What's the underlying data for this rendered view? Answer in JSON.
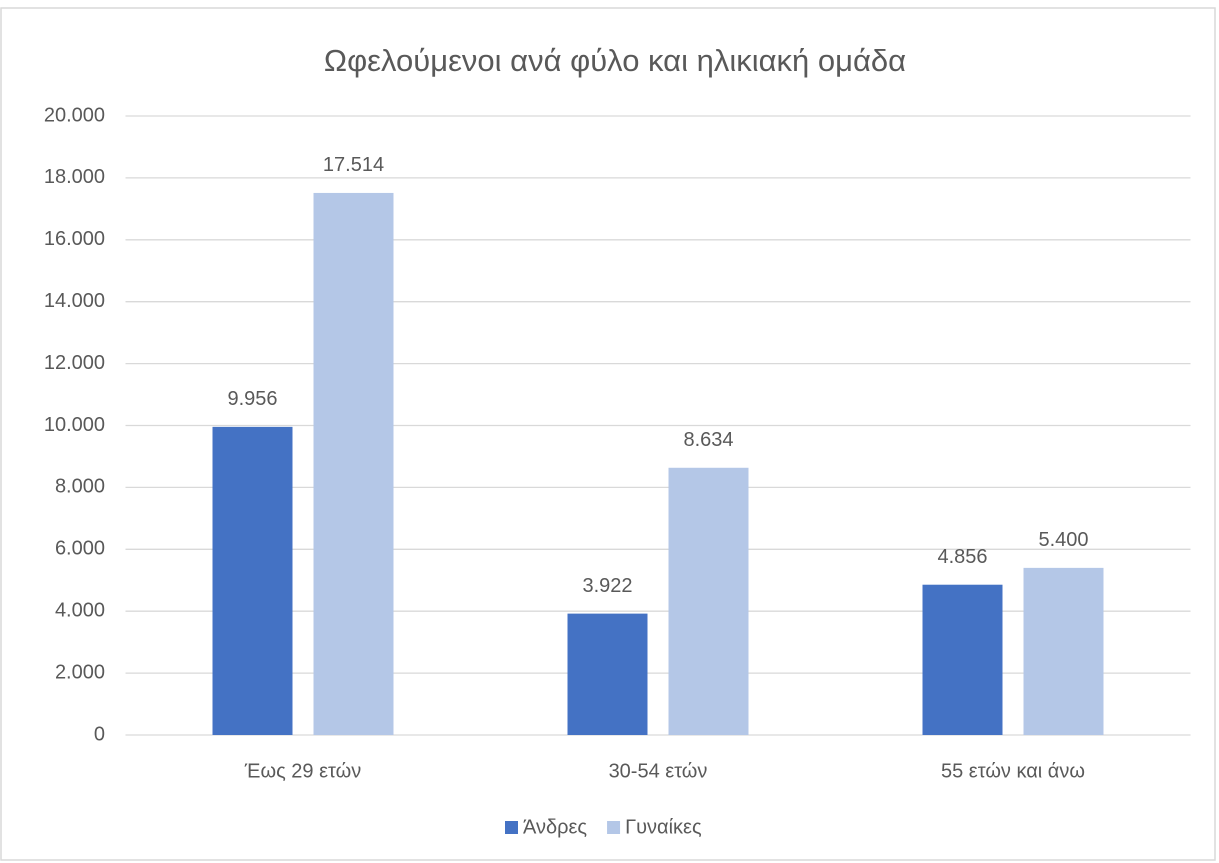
{
  "chart_data": {
    "type": "bar",
    "title": "Ωφελούμενοι ανά φύλο και ηλικιακή ομάδα",
    "categories": [
      "Έως 29 ετών",
      "30-54 ετών",
      "55 ετών και άνω"
    ],
    "series": [
      {
        "name": "Άνδρες",
        "color": "#4472c4",
        "values": [
          9956,
          3922,
          4856
        ],
        "value_labels": [
          "9.956",
          "3.922",
          "4.856"
        ]
      },
      {
        "name": "Γυναίκες",
        "color": "#b4c7e7",
        "values": [
          17514,
          8634,
          5400
        ],
        "value_labels": [
          "17.514",
          "8.634",
          "5.400"
        ]
      }
    ],
    "ylim": [
      0,
      20000
    ],
    "yticks": [
      0,
      {
        "value": 2000,
        "label": "2.000"
      },
      {
        "value": 4000,
        "label": "4.000"
      },
      {
        "value": 6000,
        "label": "6.000"
      },
      {
        "value": 8000,
        "label": "8.000"
      },
      {
        "value": 10000,
        "label": "10.000"
      },
      {
        "value": 12000,
        "label": "12.000"
      },
      {
        "value": 14000,
        "label": "14.000"
      },
      {
        "value": 16000,
        "label": "16.000"
      },
      {
        "value": 18000,
        "label": "18.000"
      },
      {
        "value": 20000,
        "label": "20.000"
      }
    ],
    "grid": true,
    "legend": "bottom"
  }
}
